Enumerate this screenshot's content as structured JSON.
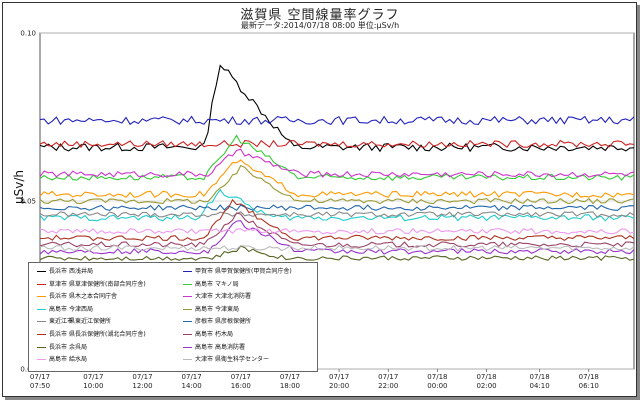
{
  "title": "滋賀県 空間線量率グラフ",
  "subtitle": "最新データ:2014/07/18 08:00 単位:μSv/h",
  "chart_data": {
    "type": "line",
    "ylabel": "μSv/h",
    "ylim": [
      0,
      0.1
    ],
    "yticks": [
      "0.00",
      "0.05",
      "0.10"
    ],
    "xticks": [
      [
        "07/17",
        "07:50"
      ],
      [
        "07/17",
        "10:00"
      ],
      [
        "07/17",
        "12:00"
      ],
      [
        "07/17",
        "14:00"
      ],
      [
        "07/17",
        "16:00"
      ],
      [
        "07/17",
        "18:00"
      ],
      [
        "07/17",
        "20:00"
      ],
      [
        "07/17",
        "22:00"
      ],
      [
        "07/18",
        "00:00"
      ],
      [
        "07/18",
        "02:00"
      ],
      [
        "07/18",
        "04:10"
      ],
      [
        "07/18",
        "06:10"
      ]
    ],
    "x_hours": [
      0,
      2.17,
      4.17,
      6.17,
      8.17,
      10.17,
      12.17,
      14.17,
      16.17,
      18.17,
      20.33,
      22.33
    ],
    "x_range_hours": [
      0,
      24.17
    ],
    "series": [
      {
        "city": "長浜市",
        "name": "西浅井局",
        "color": "#000000",
        "base": 0.066,
        "spike": 0.091,
        "spike_start": 6.7,
        "spike_peak": 7.3,
        "spike_end": 10.3,
        "noise": 0.0012
      },
      {
        "city": "甲賀市",
        "name": "県甲賀保健所(甲賀合同庁舎)",
        "color": "#2222bb",
        "base": 0.074,
        "spike": 0.074,
        "spike_start": 0,
        "spike_peak": 0,
        "spike_end": 0,
        "noise": 0.0012
      },
      {
        "city": "草津市",
        "name": "県草津保健所(南部合同庁舎)",
        "color": "#cc2222",
        "base": 0.067,
        "spike": 0.067,
        "spike_start": 0,
        "spike_peak": 0,
        "spike_end": 0,
        "noise": 0.001
      },
      {
        "city": "高島市",
        "name": "マキノ局",
        "color": "#33cc33",
        "base": 0.057,
        "spike": 0.069,
        "spike_start": 6.7,
        "spike_peak": 8.0,
        "spike_end": 10.5,
        "noise": 0.0009
      },
      {
        "city": "長浜市",
        "name": "県木之本合同庁舎",
        "color": "#ff9900",
        "base": 0.052,
        "spike": 0.062,
        "spike_start": 6.7,
        "spike_peak": 8.0,
        "spike_end": 10.5,
        "noise": 0.0009
      },
      {
        "city": "大津市",
        "name": "大津北消防署",
        "color": "#cc33cc",
        "base": 0.058,
        "spike": 0.065,
        "spike_start": 6.9,
        "spike_peak": 8.0,
        "spike_end": 10.5,
        "noise": 0.0009
      },
      {
        "city": "高島市",
        "name": "今津西局",
        "color": "#22cccc",
        "base": 0.045,
        "spike": 0.053,
        "spike_start": 6.4,
        "spike_peak": 7.3,
        "spike_end": 9.5,
        "noise": 0.0009
      },
      {
        "city": "高島市",
        "name": "今津東局",
        "color": "#999933",
        "base": 0.05,
        "spike": 0.06,
        "spike_start": 6.9,
        "spike_peak": 8.2,
        "spike_end": 10.5,
        "noise": 0.0008
      },
      {
        "city": "東近江市",
        "name": "県東近江保健所",
        "color": "#888888",
        "base": 0.046,
        "spike": 0.046,
        "spike_start": 0,
        "spike_peak": 0,
        "spike_end": 0,
        "noise": 0.0008
      },
      {
        "city": "彦根市",
        "name": "県彦根保健所",
        "color": "#2266aa",
        "base": 0.048,
        "spike": 0.048,
        "spike_start": 0,
        "spike_peak": 0,
        "spike_end": 0,
        "noise": 0.0008
      },
      {
        "city": "長浜市",
        "name": "県長浜保健所(湖北合同庁舎)",
        "color": "#aa3322",
        "base": 0.039,
        "spike": 0.05,
        "spike_start": 6.7,
        "spike_peak": 7.8,
        "spike_end": 10.3,
        "noise": 0.0008
      },
      {
        "city": "高島市",
        "name": "朽木局",
        "color": "#994466",
        "base": 0.037,
        "spike": 0.046,
        "spike_start": 6.7,
        "spike_peak": 8.0,
        "spike_end": 10.3,
        "noise": 0.0008
      },
      {
        "city": "長浜市",
        "name": "余呉局",
        "color": "#556622",
        "base": 0.033,
        "spike": 0.036,
        "spike_start": 7.0,
        "spike_peak": 8.2,
        "spike_end": 10.0,
        "noise": 0.0007
      },
      {
        "city": "高島市",
        "name": "高島消防署",
        "color": "#9933cc",
        "base": 0.035,
        "spike": 0.044,
        "spike_start": 6.9,
        "spike_peak": 8.0,
        "spike_end": 10.5,
        "noise": 0.0008
      },
      {
        "city": "高島市",
        "name": "給水局",
        "color": "#ee99ee",
        "base": 0.041,
        "spike": 0.041,
        "spike_start": 0,
        "spike_peak": 0,
        "spike_end": 0,
        "noise": 0.0008
      },
      {
        "city": "大津市",
        "name": "県衛生科学センター",
        "color": "#bbbbbb",
        "base": 0.036,
        "spike": 0.036,
        "spike_start": 0,
        "spike_peak": 0,
        "spike_end": 0,
        "noise": 0.0008
      }
    ]
  }
}
